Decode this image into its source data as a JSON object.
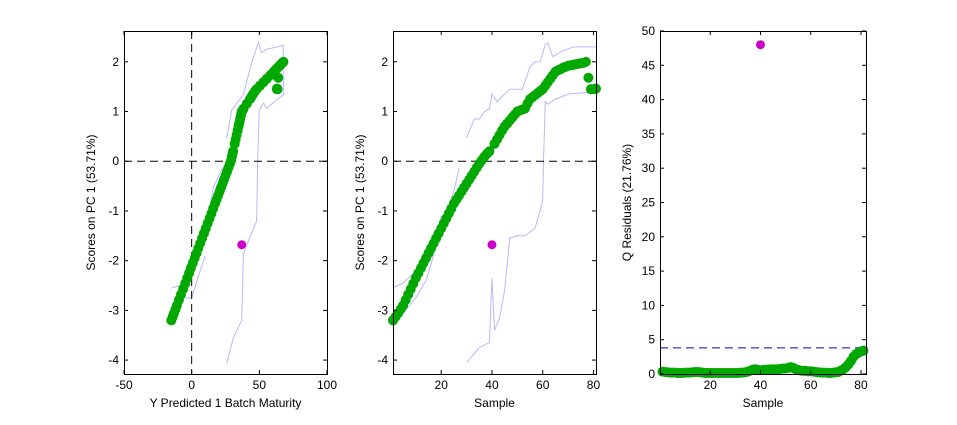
{
  "colors": {
    "normal": "#00a800",
    "outlier": "#cc00cc",
    "limit_band": "#b8b8ff",
    "q_limit": "#0000cc",
    "axes": "#000000"
  },
  "chart_data": [
    {
      "type": "scatter",
      "title": "",
      "xlabel": "Y Predicted 1 Batch Maturity",
      "ylabel": "Scores on PC 1 (53.71%)",
      "xlim": [
        -50,
        100
      ],
      "ylim": [
        -4.28,
        2.62
      ],
      "xticks": [
        -50,
        0,
        50,
        100
      ],
      "xtick_labels": [
        "-50",
        "0",
        "50",
        "100"
      ],
      "yticks": [
        -4,
        -3,
        -2,
        -1,
        0,
        1,
        2
      ],
      "ytick_labels": [
        "-4",
        "-3",
        "-2",
        "-1",
        "0",
        "1",
        "2"
      ],
      "hlines": [
        {
          "y": 0,
          "style": "dashed",
          "color": "#000000"
        }
      ],
      "vlines": [
        {
          "x": 0,
          "style": "dashed",
          "color": "#000000"
        }
      ],
      "points": {
        "x": [
          -15.0,
          -14.0,
          -13.1,
          -12.0,
          -10.9,
          -9.4,
          -7.9,
          -6.3,
          -4.8,
          -3.3,
          -1.9,
          -0.6,
          0.8,
          2.2,
          3.6,
          4.9,
          6.3,
          7.7,
          9.1,
          10.4,
          11.8,
          13.2,
          14.6,
          15.9,
          17.3,
          18.4,
          19.5,
          20.6,
          21.7,
          22.8,
          23.9,
          25.0,
          26.1,
          27.2,
          28.3,
          29.2,
          29.7,
          30.2,
          30.6,
          37.0,
          31.8,
          32.5,
          33.2,
          34.0,
          34.6,
          35.1,
          35.6,
          36.0,
          36.5,
          37.0,
          37.5,
          38.0,
          38.4,
          40.8,
          43.0,
          44.0,
          44.9,
          45.9,
          46.8,
          48.0,
          50.5,
          53.0,
          55.6,
          58.1,
          60.6,
          61.7,
          62.4,
          63.5,
          64.2,
          64.9,
          65.3,
          65.6,
          66.0,
          66.4,
          66.7,
          67.1,
          67.8,
          64.0,
          63.0,
          63.5,
          63.0
        ],
        "y": [
          -3.2,
          -3.13,
          -3.06,
          -2.98,
          -2.9,
          -2.79,
          -2.68,
          -2.57,
          -2.46,
          -2.35,
          -2.25,
          -2.15,
          -2.05,
          -1.95,
          -1.85,
          -1.75,
          -1.65,
          -1.55,
          -1.45,
          -1.35,
          -1.25,
          -1.15,
          -1.05,
          -0.95,
          -0.85,
          -0.77,
          -0.69,
          -0.61,
          -0.53,
          -0.45,
          -0.37,
          -0.29,
          -0.21,
          -0.13,
          -0.05,
          0.02,
          0.09,
          0.15,
          0.2,
          -1.68,
          0.35,
          0.44,
          0.53,
          0.62,
          0.7,
          0.76,
          0.82,
          0.88,
          0.94,
          1.0,
          1.02,
          1.04,
          1.06,
          1.16,
          1.25,
          1.29,
          1.33,
          1.37,
          1.41,
          1.45,
          1.52,
          1.59,
          1.66,
          1.73,
          1.8,
          1.83,
          1.85,
          1.88,
          1.9,
          1.92,
          1.93,
          1.94,
          1.95,
          1.96,
          1.97,
          1.98,
          2.0,
          1.68,
          1.45,
          1.45,
          1.46
        ]
      },
      "outlier_index": 39,
      "limit_lines": [
        [
          [
            25.9,
            0.46
          ],
          [
            29.6,
            1.03
          ],
          [
            38.2,
            1.34
          ],
          [
            44.3,
            1.98
          ],
          [
            49.3,
            2.39
          ],
          [
            51.7,
            2.18
          ],
          [
            55.4,
            2.25
          ],
          [
            67.7,
            2.33
          ],
          [
            67.7,
            1.34
          ],
          [
            55.4,
            1.07
          ],
          [
            53.0,
            1.17
          ],
          [
            50.0,
            1.03
          ],
          [
            48.8,
            0.02
          ],
          [
            48.0,
            -1.2
          ],
          [
            43.0,
            -1.53
          ],
          [
            38.2,
            -1.86
          ],
          [
            37.0,
            -3.2
          ],
          [
            30.8,
            -3.56
          ],
          [
            25.9,
            -4.07
          ]
        ],
        [
          [
            -14.8,
            -2.55
          ],
          [
            -6.2,
            -2.48
          ],
          [
            1.2,
            -2.07
          ],
          [
            9.9,
            -1.47
          ],
          [
            16.0,
            -0.52
          ],
          [
            23.4,
            -0.11
          ]
        ],
        [
          [
            -14.8,
            -3.09
          ],
          [
            -8.6,
            -2.75
          ],
          [
            0.0,
            -2.75
          ],
          [
            3.7,
            -2.42
          ],
          [
            10.0,
            -1.9
          ]
        ]
      ]
    },
    {
      "type": "scatter",
      "title": "",
      "xlabel": "Sample",
      "ylabel": "Scores on PC 1 (53.71%)",
      "xlim": [
        1,
        81
      ],
      "ylim": [
        -4.28,
        2.62
      ],
      "xticks": [
        20,
        40,
        60,
        80
      ],
      "xtick_labels": [
        "20",
        "40",
        "60",
        "80"
      ],
      "yticks": [
        -4,
        -3,
        -2,
        -1,
        0,
        1,
        2
      ],
      "ytick_labels": [
        "-4",
        "-3",
        "-2",
        "-1",
        "0",
        "1",
        "2"
      ],
      "hlines": [
        {
          "y": 0,
          "style": "dashed",
          "color": "#000000"
        }
      ],
      "vlines": [],
      "points": {
        "x": "sample_index",
        "y": [
          -3.2,
          -3.13,
          -3.06,
          -2.98,
          -2.9,
          -2.79,
          -2.68,
          -2.57,
          -2.46,
          -2.35,
          -2.25,
          -2.15,
          -2.05,
          -1.95,
          -1.85,
          -1.75,
          -1.65,
          -1.55,
          -1.45,
          -1.35,
          -1.25,
          -1.15,
          -1.05,
          -0.95,
          -0.85,
          -0.77,
          -0.69,
          -0.61,
          -0.53,
          -0.45,
          -0.37,
          -0.29,
          -0.21,
          -0.13,
          -0.05,
          0.02,
          0.09,
          0.15,
          0.2,
          -1.68,
          0.35,
          0.44,
          0.53,
          0.62,
          0.7,
          0.76,
          0.82,
          0.88,
          0.94,
          1.0,
          1.02,
          1.04,
          1.06,
          1.16,
          1.25,
          1.29,
          1.33,
          1.37,
          1.41,
          1.45,
          1.52,
          1.59,
          1.66,
          1.73,
          1.8,
          1.83,
          1.85,
          1.88,
          1.9,
          1.92,
          1.93,
          1.94,
          1.95,
          1.96,
          1.97,
          1.98,
          2.0,
          1.68,
          1.45,
          1.45,
          1.46
        ]
      },
      "outlier_index": 39,
      "limit_lines": [
        [
          [
            1,
            -2.55
          ],
          [
            5,
            -2.45
          ],
          [
            10,
            -2.2
          ],
          [
            15,
            -1.9
          ],
          [
            20,
            -1.3
          ],
          [
            25,
            -0.6
          ],
          [
            27,
            -0.15
          ]
        ],
        [
          [
            30,
            0.47
          ],
          [
            33,
            0.85
          ],
          [
            35,
            0.85
          ],
          [
            37,
            1.0
          ],
          [
            39,
            1.05
          ],
          [
            40,
            1.35
          ],
          [
            42,
            1.2
          ],
          [
            47,
            1.45
          ],
          [
            52,
            1.45
          ],
          [
            55,
            1.9
          ],
          [
            57,
            2.0
          ],
          [
            59,
            2.0
          ],
          [
            61,
            2.35
          ],
          [
            62,
            2.38
          ],
          [
            64,
            2.1
          ],
          [
            67,
            2.2
          ],
          [
            72,
            2.3
          ],
          [
            81,
            2.3
          ]
        ],
        [
          [
            5,
            -3.05
          ],
          [
            10,
            -2.75
          ],
          [
            14,
            -2.4
          ],
          [
            17,
            -1.9
          ],
          [
            20,
            -1.1
          ]
        ],
        [
          [
            30,
            -4.05
          ],
          [
            35,
            -3.75
          ],
          [
            39,
            -3.65
          ],
          [
            40,
            -2.35
          ],
          [
            41,
            -3.4
          ],
          [
            43,
            -3.15
          ],
          [
            45,
            -2.6
          ],
          [
            47,
            -1.55
          ],
          [
            50,
            -1.5
          ],
          [
            53,
            -1.5
          ],
          [
            57,
            -1.35
          ],
          [
            60,
            -0.8
          ],
          [
            60.3,
            0.0
          ],
          [
            61,
            1.2
          ],
          [
            62,
            1.15
          ],
          [
            65,
            1.25
          ],
          [
            70,
            1.35
          ],
          [
            81,
            1.4
          ]
        ]
      ]
    },
    {
      "type": "scatter",
      "title": "",
      "xlabel": "Sample",
      "ylabel": "Q Residuals (21.76%)",
      "xlim": [
        0,
        82
      ],
      "ylim": [
        0,
        50
      ],
      "xticks": [
        20,
        40,
        60,
        80
      ],
      "xtick_labels": [
        "20",
        "40",
        "60",
        "80"
      ],
      "yticks": [
        0,
        5,
        10,
        15,
        20,
        25,
        30,
        35,
        40,
        45,
        50
      ],
      "ytick_labels": [
        "0",
        "5",
        "10",
        "15",
        "20",
        "25",
        "30",
        "35",
        "40",
        "45",
        "50"
      ],
      "hlines": [
        {
          "y": 3.8,
          "style": "dashed",
          "color": "#0000cc"
        }
      ],
      "vlines": [],
      "points": {
        "x": "sample_index",
        "y": [
          0.35,
          0.3,
          0.25,
          0.2,
          0.2,
          0.2,
          0.15,
          0.15,
          0.15,
          0.2,
          0.2,
          0.2,
          0.25,
          0.3,
          0.3,
          0.25,
          0.2,
          0.15,
          0.15,
          0.15,
          0.15,
          0.15,
          0.15,
          0.15,
          0.15,
          0.15,
          0.15,
          0.15,
          0.15,
          0.15,
          0.15,
          0.2,
          0.2,
          0.25,
          0.35,
          0.5,
          0.65,
          0.7,
          0.6,
          48.0,
          0.6,
          0.6,
          0.65,
          0.65,
          0.7,
          0.65,
          0.7,
          0.75,
          0.8,
          0.8,
          0.9,
          1.0,
          0.9,
          0.7,
          0.6,
          0.5,
          0.45,
          0.45,
          0.4,
          0.4,
          0.35,
          0.3,
          0.25,
          0.2,
          0.2,
          0.2,
          0.15,
          0.15,
          0.2,
          0.25,
          0.3,
          0.5,
          0.7,
          1.0,
          1.4,
          1.9,
          2.5,
          2.9,
          3.1,
          3.3,
          3.4
        ]
      },
      "outlier_index": 39,
      "limit_lines": []
    }
  ]
}
